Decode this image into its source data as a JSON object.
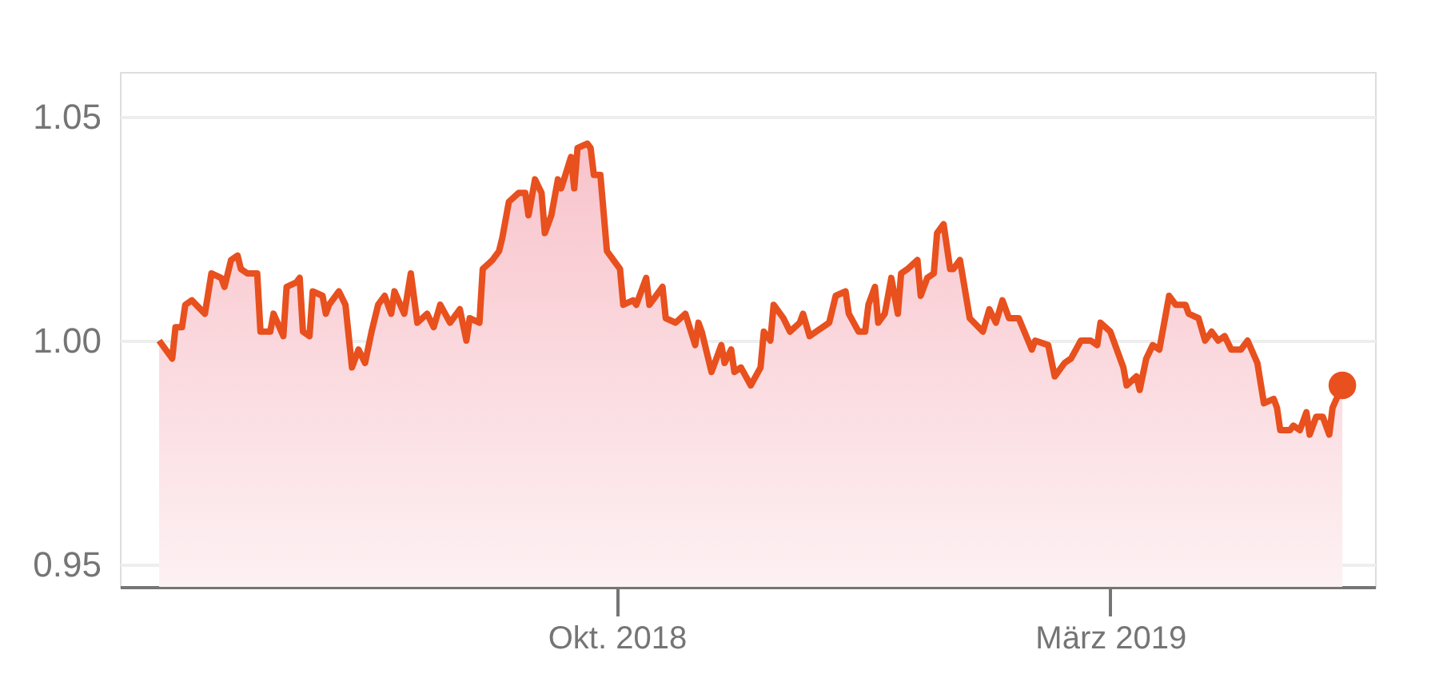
{
  "chart_data": {
    "type": "area",
    "x": [
      "2018-05-14",
      "2018-05-18",
      "2018-05-19",
      "2018-05-21",
      "2018-05-22",
      "2018-05-24",
      "2018-05-28",
      "2018-05-30",
      "2018-06-02",
      "2018-06-03",
      "2018-06-05",
      "2018-06-07",
      "2018-06-08",
      "2018-06-10",
      "2018-06-13",
      "2018-06-14",
      "2018-06-17",
      "2018-06-18",
      "2018-06-21",
      "2018-06-22",
      "2018-06-25",
      "2018-06-26",
      "2018-06-27",
      "2018-06-29",
      "2018-06-30",
      "2018-07-03",
      "2018-07-04",
      "2018-07-05",
      "2018-07-08",
      "2018-07-10",
      "2018-07-12",
      "2018-07-14",
      "2018-07-16",
      "2018-07-18",
      "2018-07-20",
      "2018-07-22",
      "2018-07-24",
      "2018-07-25",
      "2018-07-28",
      "2018-07-30",
      "2018-08-01",
      "2018-08-04",
      "2018-08-06",
      "2018-08-08",
      "2018-08-11",
      "2018-08-14",
      "2018-08-16",
      "2018-08-17",
      "2018-08-20",
      "2018-08-21",
      "2018-08-24",
      "2018-08-26",
      "2018-08-27",
      "2018-08-29",
      "2018-09-01",
      "2018-09-03",
      "2018-09-04",
      "2018-09-06",
      "2018-09-08",
      "2018-09-09",
      "2018-09-11",
      "2018-09-13",
      "2018-09-14",
      "2018-09-17",
      "2018-09-18",
      "2018-09-19",
      "2018-09-22",
      "2018-09-23",
      "2018-09-24",
      "2018-09-26",
      "2018-09-28",
      "2018-09-29",
      "2018-10-02",
      "2018-10-03",
      "2018-10-06",
      "2018-10-07",
      "2018-10-10",
      "2018-10-11",
      "2018-10-15",
      "2018-10-16",
      "2018-10-19",
      "2018-10-22",
      "2018-10-25",
      "2018-10-26",
      "2018-10-27",
      "2018-10-30",
      "2018-11-02",
      "2018-11-03",
      "2018-11-05",
      "2018-11-06",
      "2018-11-08",
      "2018-11-11",
      "2018-11-14",
      "2018-11-15",
      "2018-11-17",
      "2018-11-18",
      "2018-11-21",
      "2018-11-23",
      "2018-11-26",
      "2018-11-27",
      "2018-11-29",
      "2018-12-01",
      "2018-12-05",
      "2018-12-07",
      "2018-12-10",
      "2018-12-11",
      "2018-12-14",
      "2018-12-16",
      "2018-12-17",
      "2018-12-19",
      "2018-12-20",
      "2018-12-22",
      "2018-12-24",
      "2018-12-26",
      "2018-12-27",
      "2018-12-29",
      "2019-01-01",
      "2019-01-02",
      "2019-01-04",
      "2019-01-06",
      "2019-01-07",
      "2019-01-09",
      "2019-01-11",
      "2019-01-12",
      "2019-01-14",
      "2019-01-17",
      "2019-01-21",
      "2019-01-23",
      "2019-01-25",
      "2019-01-27",
      "2019-01-29",
      "2019-02-01",
      "2019-02-05",
      "2019-02-06",
      "2019-02-10",
      "2019-02-12",
      "2019-02-15",
      "2019-02-17",
      "2019-02-20",
      "2019-02-23",
      "2019-02-25",
      "2019-02-26",
      "2019-03-01",
      "2019-03-05",
      "2019-03-06",
      "2019-03-09",
      "2019-03-10",
      "2019-03-12",
      "2019-03-14",
      "2019-03-16",
      "2019-03-19",
      "2019-03-21",
      "2019-03-24",
      "2019-03-25",
      "2019-03-28",
      "2019-03-30",
      "2019-04-01",
      "2019-04-03",
      "2019-04-05",
      "2019-04-07",
      "2019-04-10",
      "2019-04-12",
      "2019-04-15",
      "2019-04-17",
      "2019-04-20",
      "2019-04-21",
      "2019-04-22",
      "2019-04-25",
      "2019-04-26",
      "2019-04-28",
      "2019-04-30",
      "2019-05-01",
      "2019-05-03",
      "2019-05-05",
      "2019-05-07",
      "2019-05-08",
      "2019-05-11"
    ],
    "series": [
      {
        "color": "#e8501e",
        "values": [
          1.0,
          0.996,
          1.003,
          1.003,
          1.008,
          1.009,
          1.006,
          1.015,
          1.014,
          1.012,
          1.018,
          1.019,
          1.016,
          1.015,
          1.015,
          1.002,
          1.002,
          1.006,
          1.001,
          1.012,
          1.013,
          1.014,
          1.002,
          1.001,
          1.011,
          1.01,
          1.006,
          1.008,
          1.011,
          1.008,
          0.994,
          0.998,
          0.995,
          1.002,
          1.008,
          1.01,
          1.006,
          1.011,
          1.006,
          1.015,
          1.004,
          1.006,
          1.003,
          1.008,
          1.004,
          1.007,
          1.0,
          1.005,
          1.004,
          1.016,
          1.018,
          1.02,
          1.023,
          1.031,
          1.033,
          1.033,
          1.028,
          1.036,
          1.033,
          1.024,
          1.028,
          1.036,
          1.034,
          1.041,
          1.034,
          1.043,
          1.044,
          1.043,
          1.037,
          1.037,
          1.02,
          1.019,
          1.016,
          1.008,
          1.009,
          1.008,
          1.014,
          1.008,
          1.012,
          1.005,
          1.004,
          1.006,
          0.999,
          1.004,
          1.002,
          0.993,
          0.999,
          0.995,
          0.998,
          0.993,
          0.994,
          0.99,
          0.994,
          1.002,
          1.0,
          1.008,
          1.005,
          1.002,
          1.004,
          1.006,
          1.001,
          1.002,
          1.004,
          1.01,
          1.011,
          1.006,
          1.002,
          1.002,
          1.008,
          1.012,
          1.004,
          1.006,
          1.014,
          1.006,
          1.015,
          1.016,
          1.018,
          1.01,
          1.014,
          1.015,
          1.024,
          1.026,
          1.016,
          1.016,
          1.018,
          1.005,
          1.002,
          1.007,
          1.004,
          1.009,
          1.005,
          1.005,
          0.998,
          1.0,
          0.999,
          0.992,
          0.995,
          0.996,
          1.0,
          1.0,
          0.999,
          1.004,
          1.002,
          0.994,
          0.99,
          0.992,
          0.989,
          0.996,
          0.999,
          0.998,
          1.01,
          1.008,
          1.008,
          1.006,
          1.005,
          1.0,
          1.002,
          1.0,
          1.001,
          0.998,
          0.998,
          1.0,
          0.995,
          0.986,
          0.987,
          0.985,
          0.98,
          0.98,
          0.981,
          0.98,
          0.984,
          0.979,
          0.983,
          0.983,
          0.979,
          0.985,
          0.99
        ]
      }
    ],
    "xlim": [
      "2018-05-02",
      "2019-05-21"
    ],
    "xticks": [
      {
        "value": "2018-10-01",
        "label": "Okt. 2018"
      },
      {
        "value": "2019-03-01",
        "label": "März 2019"
      }
    ],
    "ylim": [
      0.945,
      1.06
    ],
    "yticks": [
      {
        "value": 0.95,
        "label": "0.95"
      },
      {
        "value": 1.0,
        "label": "1.00"
      },
      {
        "value": 1.05,
        "label": "1.05"
      }
    ],
    "grid": "y",
    "marker": "none",
    "line_style": "solid"
  }
}
